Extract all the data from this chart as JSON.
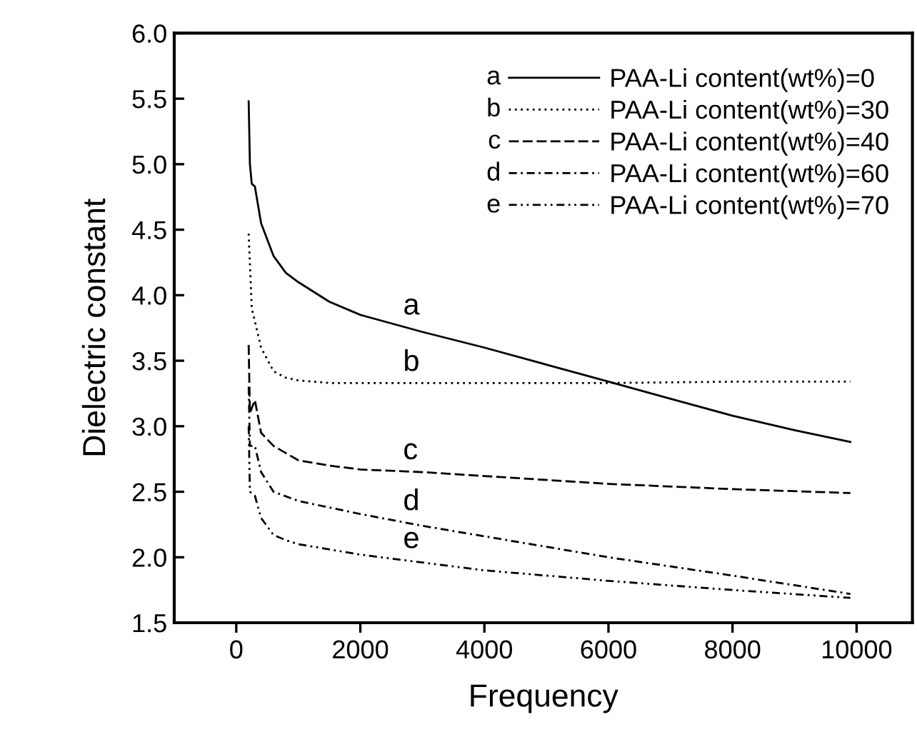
{
  "chart_data": {
    "type": "line",
    "xlabel": "Frequency",
    "ylabel": "Dielectric constant",
    "xlim": [
      -1000,
      10900
    ],
    "ylim": [
      1.5,
      6.0
    ],
    "xticks": [
      0,
      2000,
      4000,
      6000,
      8000,
      10000
    ],
    "yticks": [
      {
        "value": 1.5,
        "label": "1.5"
      },
      {
        "value": 2.0,
        "label": "2.0"
      },
      {
        "value": 2.5,
        "label": "2.5"
      },
      {
        "value": 3.0,
        "label": "3.0"
      },
      {
        "value": 3.5,
        "label": "3.5"
      },
      {
        "value": 4.0,
        "label": "4.0"
      },
      {
        "value": 4.5,
        "label": "4.5"
      },
      {
        "value": 5.0,
        "label": "5.0"
      },
      {
        "value": 5.5,
        "label": "5.5"
      },
      {
        "value": 6.0,
        "label": "6.0"
      }
    ],
    "grid": false,
    "legend": "top right",
    "marker": "none",
    "annotations": [
      "a",
      "b",
      "c",
      "d",
      "e"
    ],
    "series": [
      {
        "name": "PAA-Li content(wt%)=0",
        "color": "#000000",
        "line_style": "solid",
        "x": [
          200,
          220,
          250,
          300,
          400,
          600,
          800,
          1000,
          1500,
          2000,
          3000,
          4000,
          5000,
          6000,
          7000,
          8000,
          9000,
          9900
        ],
        "values": [
          5.48,
          5.0,
          4.85,
          4.83,
          4.55,
          4.3,
          4.17,
          4.1,
          3.95,
          3.85,
          3.72,
          3.6,
          3.47,
          3.34,
          3.21,
          3.08,
          2.97,
          2.88
        ]
      },
      {
        "name": "PAA-Li content(wt%)=30",
        "color": "#000000",
        "line_style": "dotted",
        "x": [
          200,
          250,
          300,
          400,
          600,
          800,
          1000,
          1500,
          2000,
          4000,
          6000,
          8000,
          9900
        ],
        "values": [
          4.47,
          3.9,
          3.8,
          3.6,
          3.42,
          3.37,
          3.35,
          3.33,
          3.33,
          3.33,
          3.33,
          3.34,
          3.34
        ]
      },
      {
        "name": "PAA-Li content(wt%)=40",
        "color": "#000000",
        "line_style": "dashed",
        "x": [
          200,
          220,
          300,
          400,
          600,
          1000,
          1500,
          2000,
          3000,
          4000,
          6000,
          8000,
          9900
        ],
        "values": [
          3.62,
          3.1,
          3.2,
          2.95,
          2.85,
          2.74,
          2.7,
          2.67,
          2.65,
          2.62,
          2.56,
          2.52,
          2.49
        ]
      },
      {
        "name": "PAA-Li content(wt%)=60",
        "color": "#000000",
        "line_style": "dashdot",
        "x": [
          200,
          220,
          300,
          400,
          600,
          1000,
          1500,
          2000,
          3000,
          4000,
          6000,
          8000,
          9900
        ],
        "values": [
          3.3,
          2.85,
          2.85,
          2.65,
          2.5,
          2.43,
          2.38,
          2.33,
          2.24,
          2.16,
          2.0,
          1.86,
          1.72
        ]
      },
      {
        "name": "PAA-Li content(wt%)=70",
        "color": "#000000",
        "line_style": "dashdotdot",
        "x": [
          200,
          220,
          300,
          400,
          600,
          800,
          1000,
          2000,
          3000,
          4000,
          6000,
          8000,
          9900
        ],
        "values": [
          3.0,
          2.5,
          2.47,
          2.3,
          2.17,
          2.13,
          2.1,
          2.02,
          1.96,
          1.9,
          1.82,
          1.75,
          1.69
        ]
      }
    ]
  }
}
